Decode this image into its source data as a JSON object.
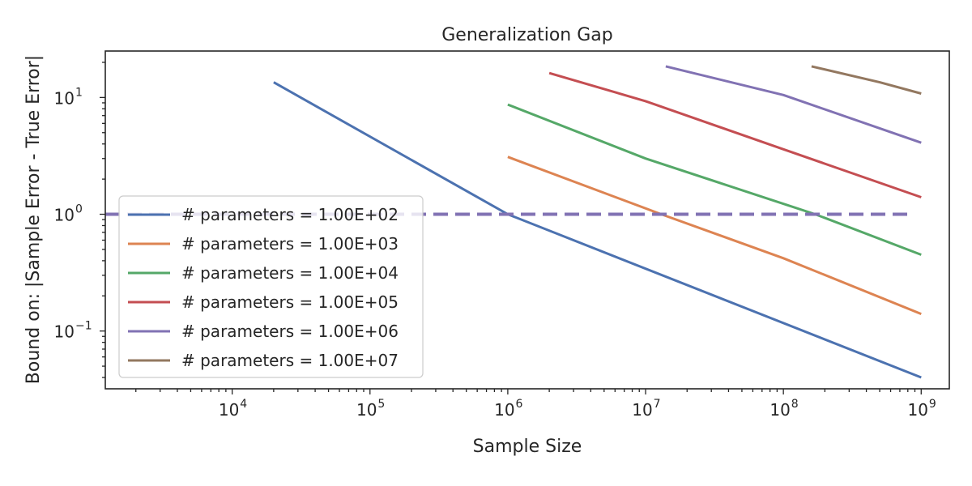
{
  "chart_data": {
    "type": "line",
    "title": "Generalization Gap",
    "xlabel": "Sample Size",
    "ylabel": "Bound on:   |Sample Error - True Error|",
    "xscale": "log",
    "yscale": "log",
    "xlim": [
      1200,
      1600000000.0
    ],
    "ylim": [
      0.032,
      25
    ],
    "x_tick_labels": [
      {
        "base": "10",
        "exp": "4",
        "value": 10000
      },
      {
        "base": "10",
        "exp": "5",
        "value": 100000
      },
      {
        "base": "10",
        "exp": "6",
        "value": 1000000
      },
      {
        "base": "10",
        "exp": "7",
        "value": 10000000
      },
      {
        "base": "10",
        "exp": "8",
        "value": 100000000
      },
      {
        "base": "10",
        "exp": "9",
        "value": 1000000000
      }
    ],
    "y_tick_labels": [
      {
        "base": "10",
        "exp": "−1",
        "value": 0.1
      },
      {
        "base": "10",
        "exp": "0",
        "value": 1
      },
      {
        "base": "10",
        "exp": "1",
        "value": 10
      }
    ],
    "grid": false,
    "legend_position": "lower-left",
    "series": [
      {
        "name": "# parameters = 1.00E+02",
        "color": "#4c72b0",
        "x": [
          20000,
          1000000,
          1000000000
        ],
        "y": [
          13.5,
          1.0,
          0.04
        ]
      },
      {
        "name": "# parameters = 1.00E+03",
        "color": "#dd8452",
        "x": [
          1000000,
          13000000,
          100000000,
          1000000000
        ],
        "y": [
          3.1,
          1.0,
          0.42,
          0.14
        ]
      },
      {
        "name": "# parameters = 1.00E+04",
        "color": "#55a868",
        "x": [
          1000000,
          10000000,
          170000000,
          1000000000
        ],
        "y": [
          8.7,
          3.0,
          1.0,
          0.45
        ]
      },
      {
        "name": "# parameters = 1.00E+05",
        "color": "#c44e52",
        "x": [
          2000000,
          10000000,
          100000000,
          1000000000
        ],
        "y": [
          16.2,
          9.3,
          3.6,
          1.4
        ]
      },
      {
        "name": "# parameters = 1.00E+06",
        "color": "#8172b3",
        "x": [
          14000000,
          100000000,
          1000000000
        ],
        "y": [
          18.5,
          10.5,
          4.1
        ]
      },
      {
        "name": "# parameters = 1.00E+07",
        "color": "#937860",
        "x": [
          160000000,
          500000000,
          1000000000
        ],
        "y": [
          18.5,
          13.5,
          10.8
        ]
      }
    ],
    "reference_line": {
      "y": 1.0,
      "style": "dashed",
      "color": "#8172b3"
    }
  }
}
